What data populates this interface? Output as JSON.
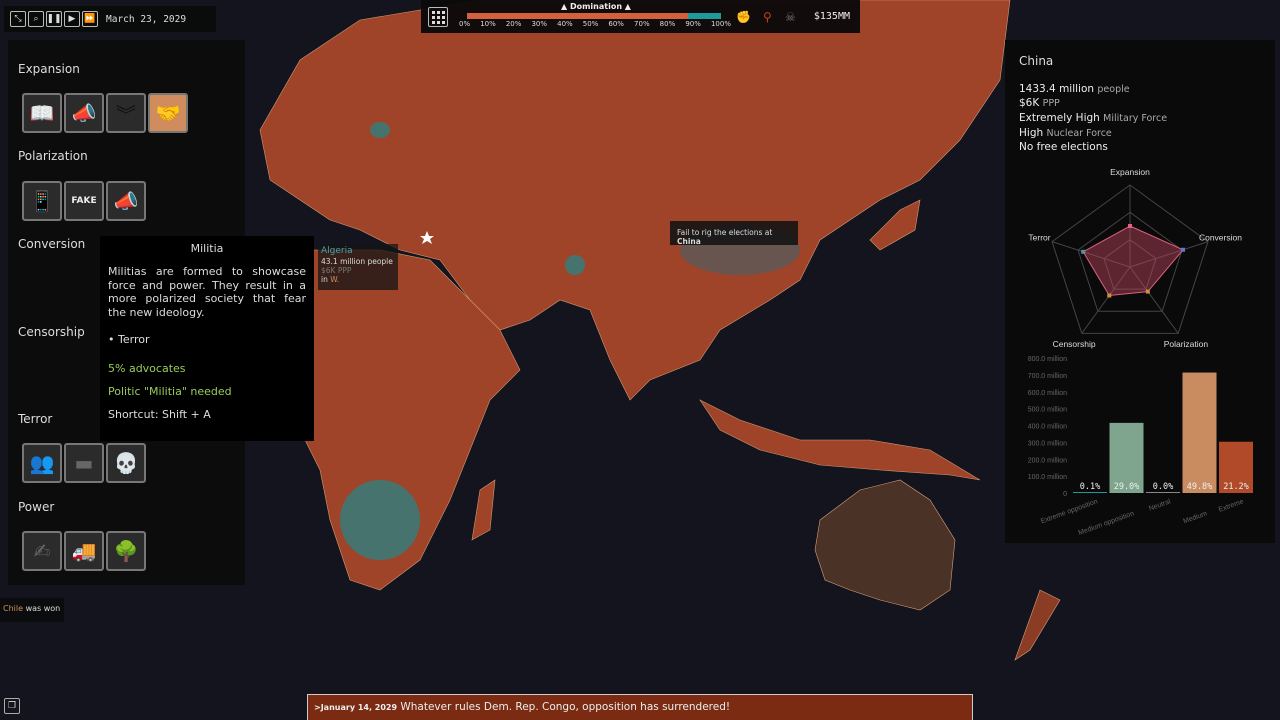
{
  "time": {
    "date": "March 23, 2029",
    "buttons": [
      "zoom-fit",
      "search",
      "pause",
      "play",
      "fast-forward"
    ]
  },
  "top": {
    "domination_label": "▲ Domination ▲",
    "domination_progress": 0.87,
    "ticks": [
      "0%",
      "10%",
      "20%",
      "30%",
      "40%",
      "50%",
      "60%",
      "70%",
      "80%",
      "90%",
      "100%"
    ],
    "money": "$135MM",
    "colors": {
      "fill": "#d2623c",
      "rest": "#1f9a9a"
    }
  },
  "left": {
    "sections": [
      {
        "title": "Expansion",
        "icons": [
          "book-icon",
          "megaphone-icon",
          "wings-icon",
          "handshake-icon"
        ]
      },
      {
        "title": "Polarization",
        "icons": [
          "phone-icon",
          "fake-news-icon",
          "megaphone-dark-icon"
        ]
      },
      {
        "title": "Conversion"
      },
      {
        "title": "Censorship"
      },
      {
        "title": "Terror",
        "icons": [
          "militia-icon",
          "dynamite-icon",
          "skull-icon"
        ]
      },
      {
        "title": "Power",
        "icons": [
          "handshake-money-icon",
          "military-truck-icon",
          "mushroom-cloud-icon"
        ]
      }
    ]
  },
  "tooltip": {
    "title": "Militia",
    "description": "Militias are formed to showcase force and power. They result in a more polarized society that fear the new ideology.",
    "category": "Terror",
    "requirement1": "5% advocates",
    "requirement2": "Politic \"Militia\" needed",
    "shortcut": "Shortcut: Shift + A"
  },
  "algeria": {
    "name": "Algeria",
    "population": "43.1 million people",
    "ppp": "$6K PPP",
    "ruler_prefix": "in ",
    "ruler": "W."
  },
  "map_tip": {
    "prefix": "Fail to rig the elections at ",
    "country": "China"
  },
  "chile": {
    "country": "Chile",
    "text": " was won"
  },
  "info": {
    "country": "China",
    "stats": [
      {
        "value": "1433.4 million",
        "label": "people"
      },
      {
        "value": "$6K",
        "label": "PPP"
      },
      {
        "value": "Extremely High",
        "label": "Military Force"
      },
      {
        "value": "High",
        "label": "Nuclear Force"
      },
      {
        "value": "No free elections",
        "label": ""
      }
    ]
  },
  "chart_data": [
    {
      "type": "radar",
      "axes": [
        "Expansion",
        "Conversion",
        "Polarization",
        "Censorship",
        "Terror"
      ],
      "values": [
        0.5,
        0.68,
        0.37,
        0.43,
        0.6
      ],
      "range": [
        0,
        1
      ],
      "color": "#c04860"
    },
    {
      "type": "bar",
      "categories": [
        "Extreme opposition",
        "Medium opposition",
        "Neutral",
        "Medium",
        "Extreme"
      ],
      "values": [
        1.4,
        415.6,
        0,
        713.8,
        303.9
      ],
      "data_labels": [
        "0.1%",
        "29.0%",
        "0.0%",
        "49.8%",
        "21.2%"
      ],
      "colors": [
        "#1f9a9a",
        "#7fa58e",
        "#888888",
        "#c98c60",
        "#b04a28"
      ],
      "ylim": [
        0,
        800
      ],
      "yticks": [
        "0",
        "100.0 million",
        "200.0 million",
        "300.0 million",
        "400.0 million",
        "500.0 million",
        "600.0 million",
        "700.0 million",
        "800.0 million"
      ]
    }
  ],
  "message": {
    "date": ">January 14, 2029",
    "text": " Whatever rules Dem. Rep. Congo, opposition has surrendered!"
  }
}
